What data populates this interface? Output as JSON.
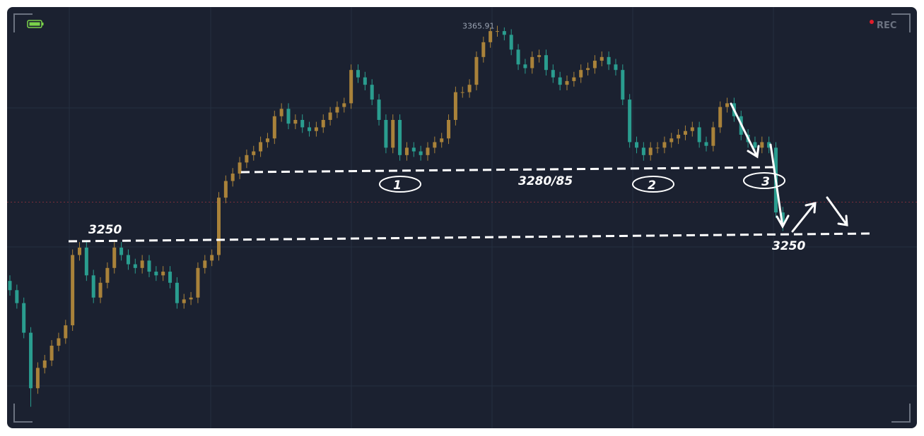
{
  "chart_data": {
    "type": "candlestick",
    "open": [
      3228,
      3223,
      3216,
      3200,
      3170,
      3181,
      3185,
      3193,
      3197,
      3204,
      3242,
      3246,
      3231,
      3219,
      3227,
      3235,
      3246,
      3242,
      3237,
      3235,
      3239,
      3233,
      3231,
      3233,
      3227,
      3216,
      3218,
      3219,
      3235,
      3239,
      3242,
      3273,
      3282,
      3286,
      3292,
      3296,
      3298,
      3303,
      3305,
      3317,
      3321,
      3313,
      3315,
      3311,
      3309,
      3311,
      3315,
      3319,
      3322,
      3324,
      3342,
      3338,
      3334,
      3326,
      3315,
      3300,
      3315,
      3296,
      3300,
      3298,
      3296,
      3300,
      3303,
      3305,
      3315,
      3330,
      3330,
      3334,
      3349,
      3357,
      3363,
      3363,
      3361,
      3353,
      3345,
      3343,
      3349,
      3350,
      3342,
      3338,
      3334,
      3336,
      3338,
      3342,
      3343,
      3347,
      3349,
      3345,
      3342,
      3326,
      3303,
      3300,
      3296,
      3300,
      3300,
      3303,
      3305,
      3307,
      3309,
      3311,
      3303,
      3301,
      3311,
      3322,
      3324,
      3317,
      3307,
      3303,
      3300,
      3303,
      3300,
      3265
    ],
    "high": [
      3231,
      3226,
      3219,
      3203,
      3184,
      3188,
      3196,
      3200,
      3207,
      3245,
      3249,
      3249,
      3234,
      3230,
      3238,
      3249,
      3249,
      3245,
      3240,
      3242,
      3242,
      3236,
      3236,
      3236,
      3230,
      3221,
      3222,
      3238,
      3242,
      3245,
      3276,
      3285,
      3289,
      3295,
      3299,
      3301,
      3306,
      3308,
      3320,
      3324,
      3324,
      3318,
      3318,
      3314,
      3314,
      3318,
      3322,
      3325,
      3327,
      3345,
      3345,
      3341,
      3337,
      3329,
      3318,
      3318,
      3318,
      3303,
      3303,
      3301,
      3303,
      3306,
      3308,
      3318,
      3333,
      3333,
      3337,
      3352,
      3360,
      3365,
      3365.91,
      3365,
      3364,
      3356,
      3348,
      3352,
      3353,
      3353,
      3345,
      3341,
      3339,
      3341,
      3345,
      3346,
      3350,
      3352,
      3352,
      3348,
      3345,
      3329,
      3306,
      3303,
      3303,
      3303,
      3306,
      3308,
      3310,
      3312,
      3314,
      3314,
      3306,
      3314,
      3325,
      3327,
      3327,
      3320,
      3310,
      3306,
      3306,
      3306,
      3303,
      3268
    ],
    "low": [
      3220,
      3213,
      3197,
      3160,
      3167,
      3178,
      3182,
      3190,
      3194,
      3201,
      3239,
      3228,
      3216,
      3216,
      3224,
      3232,
      3239,
      3234,
      3232,
      3232,
      3230,
      3228,
      3228,
      3224,
      3213,
      3213,
      3215,
      3216,
      3232,
      3236,
      3239,
      3270,
      3279,
      3283,
      3289,
      3293,
      3295,
      3300,
      3302,
      3314,
      3310,
      3310,
      3308,
      3306,
      3306,
      3308,
      3312,
      3316,
      3319,
      3321,
      3335,
      3331,
      3323,
      3312,
      3297,
      3297,
      3293,
      3293,
      3295,
      3293,
      3293,
      3297,
      3300,
      3302,
      3312,
      3327,
      3327,
      3331,
      3346,
      3354,
      3360,
      3358,
      3350,
      3342,
      3340,
      3340,
      3346,
      3339,
      3335,
      3331,
      3331,
      3333,
      3335,
      3339,
      3340,
      3344,
      3342,
      3339,
      3323,
      3300,
      3297,
      3293,
      3293,
      3297,
      3297,
      3300,
      3302,
      3304,
      3306,
      3300,
      3298,
      3298,
      3308,
      3319,
      3314,
      3304,
      3300,
      3297,
      3297,
      3297,
      3262,
      3255
    ],
    "close": [
      3223,
      3216,
      3200,
      3170,
      3181,
      3185,
      3193,
      3197,
      3204,
      3242,
      3246,
      3231,
      3219,
      3227,
      3235,
      3246,
      3242,
      3237,
      3235,
      3239,
      3233,
      3231,
      3233,
      3227,
      3216,
      3218,
      3219,
      3235,
      3239,
      3242,
      3273,
      3282,
      3286,
      3292,
      3296,
      3298,
      3303,
      3305,
      3317,
      3321,
      3313,
      3315,
      3311,
      3309,
      3311,
      3315,
      3319,
      3322,
      3324,
      3342,
      3338,
      3334,
      3326,
      3315,
      3300,
      3315,
      3296,
      3300,
      3298,
      3296,
      3300,
      3303,
      3305,
      3315,
      3330,
      3330,
      3334,
      3349,
      3357,
      3363,
      3363,
      3361,
      3353,
      3345,
      3343,
      3349,
      3350,
      3342,
      3338,
      3334,
      3336,
      3338,
      3342,
      3343,
      3347,
      3349,
      3345,
      3342,
      3326,
      3303,
      3300,
      3296,
      3300,
      3300,
      3303,
      3305,
      3307,
      3309,
      3311,
      3303,
      3301,
      3311,
      3322,
      3324,
      3317,
      3307,
      3303,
      3300,
      3303,
      3300,
      3265,
      3258
    ],
    "up_color": "#a9823a",
    "down_color": "#2a9d8f",
    "ylim": [
      3148,
      3376
    ],
    "price_line": 3270.6,
    "rec_label": "REC",
    "annotations": [
      "3250",
      "3280/85",
      "1",
      "2",
      "3",
      "3250"
    ]
  }
}
